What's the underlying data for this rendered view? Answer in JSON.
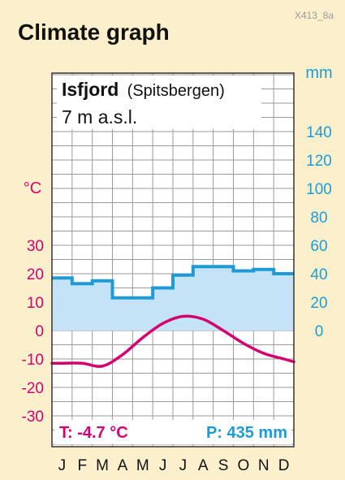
{
  "figure_code": "X413_8a",
  "page_title": "Climate graph",
  "chart_data": {
    "type": "climate-diagram",
    "station": "Isfjord",
    "region": "(Spitsbergen)",
    "elevation": "7 m a.s.l.",
    "months": [
      "J",
      "F",
      "M",
      "A",
      "M",
      "J",
      "J",
      "A",
      "S",
      "O",
      "N",
      "D"
    ],
    "temperature": {
      "unit": "°C",
      "ticks": [
        30,
        20,
        10,
        0,
        -10,
        -20,
        -30
      ],
      "range": [
        -30,
        30
      ],
      "values": [
        -11.5,
        -11.5,
        -12.5,
        -8.5,
        -2.5,
        2.5,
        5,
        4,
        0,
        -4.5,
        -8,
        -10
      ],
      "summary": "T: -4.7 °C",
      "color": "#d4006f"
    },
    "precipitation": {
      "unit": "mm",
      "ticks": [
        140,
        120,
        100,
        80,
        60,
        40,
        20,
        0
      ],
      "range": [
        0,
        140
      ],
      "values": [
        37,
        33,
        35,
        23,
        23,
        30,
        39,
        45,
        45,
        42,
        43,
        40
      ],
      "summary": "P: 435 mm",
      "color": "#1e9bd7",
      "fill": "#c4e3f6"
    },
    "grid": true
  }
}
